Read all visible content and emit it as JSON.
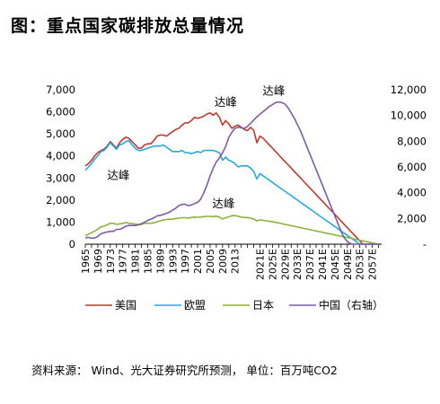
{
  "title": "图：重点国家碳排放总量情况",
  "source": "资料来源： Wind、光大证券研究所预测， 单位：百万吨CO2",
  "chart_data": {
    "type": "line",
    "x": [
      "1965",
      "1966",
      "1967",
      "1968",
      "1969",
      "1970",
      "1971",
      "1972",
      "1973",
      "1974",
      "1975",
      "1976",
      "1977",
      "1978",
      "1979",
      "1980",
      "1981",
      "1982",
      "1983",
      "1984",
      "1985",
      "1986",
      "1987",
      "1988",
      "1989",
      "1990",
      "1991",
      "1992",
      "1993",
      "1994",
      "1995",
      "1996",
      "1997",
      "1998",
      "1999",
      "2000",
      "2001",
      "2002",
      "2003",
      "2004",
      "2005",
      "2006",
      "2007",
      "2008",
      "2009",
      "2010",
      "2011",
      "2012",
      "2013",
      "2014",
      "2015",
      "2016",
      "2017",
      "2018",
      "2019",
      "2020",
      "2021E",
      "2022E",
      "2023E",
      "2024E",
      "2025E",
      "2026E",
      "2027E",
      "2028E",
      "2029E",
      "2030E",
      "2031E",
      "2032E",
      "2033E",
      "2034E",
      "2035E",
      "2036E",
      "2037E",
      "2038E",
      "2039E",
      "2040E",
      "2041E",
      "2042E",
      "2043E",
      "2044E",
      "2045E",
      "2046E",
      "2047E",
      "2048E",
      "2049E",
      "2050E",
      "2051E",
      "2052E",
      "2053E",
      "2054E",
      "2055E",
      "2056E",
      "2057E",
      "2058E",
      "2059E",
      "2060E"
    ],
    "x_tick_labels": [
      "1965",
      "1969",
      "1973",
      "1977",
      "1981",
      "1985",
      "1989",
      "1993",
      "1997",
      "2001",
      "2005",
      "2009",
      "2013",
      "2021E",
      "2025E",
      "2029E",
      "2033E",
      "2037E",
      "2041E",
      "2045E",
      "2049E",
      "2053E",
      "2057E"
    ],
    "y_left": {
      "ticks": [
        "0",
        "1,000",
        "2,000",
        "3,000",
        "4,000",
        "5,000",
        "6,000",
        "7,000"
      ],
      "ylim": [
        0,
        7000
      ]
    },
    "y_right": {
      "ticks": [
        "-",
        "2,000",
        "4,000",
        "6,000",
        "8,000",
        "10,000",
        "12,000"
      ],
      "ylim": [
        0,
        12000
      ]
    },
    "series": [
      {
        "name": "美国",
        "axis": "left",
        "color": "#c0392b",
        "values": [
          3550,
          3650,
          3800,
          4000,
          4150,
          4250,
          4300,
          4450,
          4650,
          4500,
          4350,
          4600,
          4750,
          4850,
          4800,
          4650,
          4500,
          4350,
          4350,
          4500,
          4550,
          4550,
          4700,
          4900,
          4950,
          4950,
          4900,
          5000,
          5100,
          5200,
          5250,
          5400,
          5500,
          5500,
          5600,
          5750,
          5700,
          5750,
          5800,
          5900,
          5950,
          5850,
          5950,
          5750,
          5400,
          5600,
          5450,
          5250,
          5350,
          5400,
          5300,
          5200,
          5150,
          5300,
          5150,
          4600,
          4900,
          4800,
          4650,
          4500,
          4350,
          4200,
          4050,
          3900,
          3750,
          3600,
          3450,
          3300,
          3150,
          3000,
          2850,
          2700,
          2550,
          2400,
          2250,
          2100,
          1950,
          1800,
          1650,
          1500,
          1350,
          1200,
          1050,
          900,
          750,
          600,
          450,
          300,
          150,
          0,
          0,
          0,
          0,
          0,
          0,
          0
        ]
      },
      {
        "name": "欧盟",
        "axis": "left",
        "color": "#29a8e0",
        "values": [
          3350,
          3500,
          3650,
          3850,
          4000,
          4200,
          4250,
          4400,
          4600,
          4450,
          4300,
          4500,
          4550,
          4650,
          4700,
          4500,
          4350,
          4250,
          4250,
          4300,
          4350,
          4400,
          4450,
          4450,
          4450,
          4500,
          4400,
          4300,
          4200,
          4200,
          4200,
          4250,
          4150,
          4150,
          4100,
          4150,
          4200,
          4150,
          4250,
          4250,
          4250,
          4250,
          4200,
          4150,
          3800,
          3950,
          3800,
          3750,
          3650,
          3500,
          3550,
          3550,
          3550,
          3450,
          3300,
          2950,
          3200,
          3100,
          3000,
          2900,
          2800,
          2700,
          2600,
          2500,
          2400,
          2300,
          2200,
          2100,
          2000,
          1900,
          1800,
          1700,
          1600,
          1500,
          1400,
          1300,
          1200,
          1100,
          1000,
          900,
          800,
          700,
          600,
          500,
          400,
          300,
          200,
          100,
          0,
          0,
          0,
          0,
          0,
          0,
          0,
          0
        ]
      },
      {
        "name": "日本",
        "axis": "left",
        "color": "#8db23c",
        "values": [
          380,
          450,
          520,
          600,
          680,
          780,
          820,
          880,
          950,
          950,
          900,
          920,
          950,
          980,
          950,
          930,
          910,
          890,
          890,
          950,
          950,
          950,
          970,
          1020,
          1050,
          1100,
          1120,
          1130,
          1130,
          1170,
          1180,
          1200,
          1200,
          1180,
          1210,
          1230,
          1220,
          1230,
          1250,
          1260,
          1260,
          1250,
          1270,
          1230,
          1140,
          1200,
          1240,
          1290,
          1300,
          1270,
          1230,
          1210,
          1210,
          1180,
          1140,
          1060,
          1100,
          1080,
          1060,
          1040,
          1020,
          990,
          960,
          930,
          900,
          870,
          840,
          810,
          780,
          750,
          720,
          690,
          660,
          630,
          600,
          570,
          540,
          510,
          480,
          450,
          420,
          390,
          360,
          330,
          300,
          270,
          240,
          210,
          180,
          150,
          120,
          90,
          60,
          30,
          0,
          0
        ]
      },
      {
        "name": "中国（右轴）",
        "axis": "right",
        "color": "#7d5ba6",
        "values": [
          480,
          530,
          460,
          480,
          600,
          800,
          900,
          950,
          1000,
          1000,
          1150,
          1150,
          1250,
          1400,
          1450,
          1450,
          1450,
          1500,
          1600,
          1700,
          1850,
          1950,
          2050,
          2200,
          2250,
          2300,
          2400,
          2500,
          2650,
          2800,
          3000,
          3100,
          3100,
          3000,
          3050,
          3150,
          3250,
          3500,
          4000,
          4600,
          5300,
          5900,
          6400,
          6700,
          7100,
          7600,
          8300,
          8700,
          9000,
          9100,
          9050,
          9000,
          9150,
          9400,
          9650,
          9900,
          10100,
          10300,
          10500,
          10700,
          10850,
          11000,
          11050,
          11000,
          10900,
          10600,
          10200,
          9800,
          9300,
          8800,
          8200,
          7600,
          7000,
          6400,
          5800,
          5200,
          4600,
          4000,
          3400,
          2800,
          2200,
          1600,
          1000,
          500,
          200,
          50,
          0,
          0,
          0,
          0,
          0,
          0,
          0,
          0,
          0,
          0
        ]
      }
    ],
    "annotations": [
      "达峰",
      "达峰",
      "达峰",
      "达峰"
    ],
    "legend_position": "bottom",
    "grid": false
  }
}
